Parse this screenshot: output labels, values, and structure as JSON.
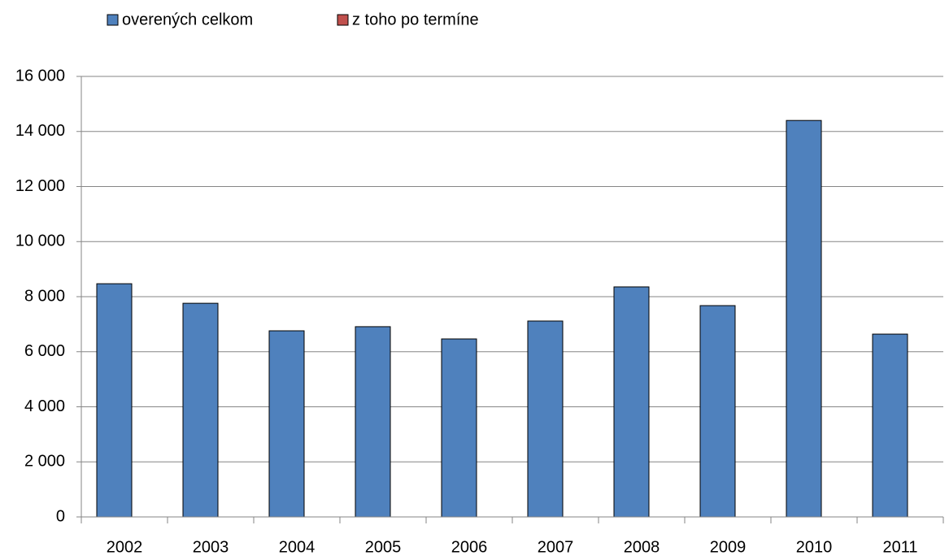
{
  "chart_data": {
    "type": "bar",
    "categories": [
      "2002",
      "2003",
      "2004",
      "2005",
      "2006",
      "2007",
      "2008",
      "2009",
      "2010",
      "2011"
    ],
    "series": [
      {
        "name": "overených celkom",
        "color": "#4f81bd",
        "values": [
          8470,
          7760,
          6760,
          6910,
          6465,
          7115,
          8355,
          7675,
          14400,
          6640
        ]
      },
      {
        "name": "z toho po termíne",
        "color": "#c0504d",
        "values": [
          0,
          0,
          0,
          0,
          0,
          0,
          0,
          0,
          0,
          0
        ]
      }
    ],
    "ylim": [
      0,
      16000
    ],
    "yticks": [
      0,
      {
        "value": 2000,
        "label": "2 000"
      },
      {
        "value": 4000,
        "label": "4 000"
      },
      {
        "value": 6000,
        "label": "6 000"
      },
      {
        "value": 8000,
        "label": "8 000"
      },
      {
        "value": 10000,
        "label": "10 000"
      },
      {
        "value": 12000,
        "label": "12 000"
      },
      {
        "value": 14000,
        "label": "14 000"
      },
      {
        "value": 16000,
        "label": "16 000"
      }
    ],
    "grid": true,
    "legend": "top"
  }
}
